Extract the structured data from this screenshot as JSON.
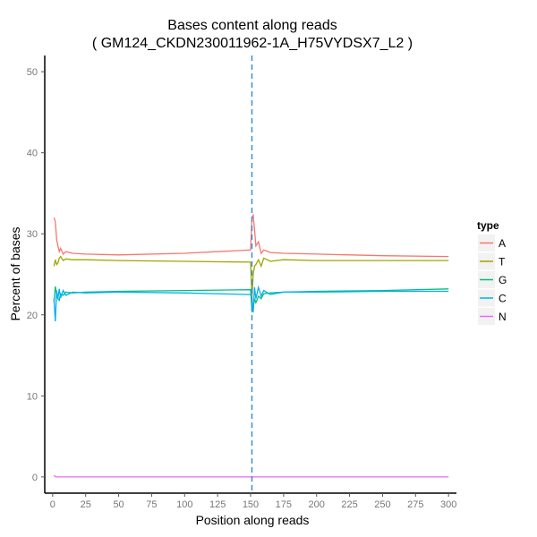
{
  "chart_data": {
    "type": "line",
    "title": "Bases content along reads",
    "subtitle": "( GM124_CKDN230011962-1A_H75VYDSX7_L2 )",
    "xlabel": "Position along reads",
    "ylabel": "Percent of bases",
    "xlim": [
      -6,
      306
    ],
    "ylim": [
      -2,
      52
    ],
    "xticks": [
      0,
      25,
      50,
      75,
      100,
      125,
      150,
      175,
      200,
      225,
      250,
      275,
      300
    ],
    "yticks": [
      0,
      10,
      20,
      30,
      40,
      50
    ],
    "vline": {
      "x": 151,
      "style": "dashed",
      "color": "#3a8fd6"
    },
    "legend": {
      "title": "type",
      "position": "right"
    },
    "grid": false,
    "x": [
      1,
      2,
      3,
      4,
      5,
      6,
      8,
      10,
      15,
      25,
      50,
      100,
      150,
      151,
      152,
      153,
      154,
      156,
      158,
      160,
      165,
      175,
      200,
      250,
      300
    ],
    "series": [
      {
        "name": "A",
        "color": "#f8766d",
        "values": [
          32.0,
          31.5,
          29.3,
          28.5,
          27.8,
          28.2,
          27.5,
          27.8,
          27.6,
          27.5,
          27.4,
          27.6,
          28.0,
          32.0,
          32.3,
          30.5,
          28.5,
          29.0,
          27.6,
          28.0,
          27.7,
          27.6,
          27.5,
          27.3,
          27.2
        ]
      },
      {
        "name": "T",
        "color": "#a3a500",
        "values": [
          26.0,
          26.8,
          26.2,
          26.4,
          27.0,
          27.2,
          26.7,
          26.9,
          26.8,
          26.8,
          26.7,
          26.6,
          26.5,
          22.0,
          25.0,
          26.0,
          26.2,
          26.8,
          26.0,
          27.0,
          26.6,
          26.8,
          26.7,
          26.7,
          26.7
        ]
      },
      {
        "name": "G",
        "color": "#00bf7d",
        "values": [
          21.5,
          23.5,
          22.5,
          22.0,
          21.8,
          22.6,
          22.4,
          22.8,
          22.7,
          22.8,
          22.9,
          23.0,
          23.1,
          20.5,
          20.8,
          22.0,
          21.5,
          22.3,
          22.0,
          22.6,
          22.7,
          22.8,
          22.9,
          23.0,
          23.2
        ]
      },
      {
        "name": "C",
        "color": "#00b0f6",
        "values": [
          22.0,
          19.2,
          23.0,
          22.0,
          23.2,
          22.1,
          23.0,
          22.4,
          22.8,
          22.7,
          22.8,
          22.7,
          22.5,
          22.0,
          20.3,
          23.4,
          22.0,
          23.4,
          22.3,
          23.0,
          22.5,
          22.8,
          22.8,
          22.9,
          22.9
        ]
      },
      {
        "name": "N",
        "color": "#e76bf3",
        "values": [
          0.2,
          0.05,
          0,
          0,
          0,
          0,
          0,
          0,
          0,
          0,
          0,
          0,
          0,
          0,
          0,
          0,
          0,
          0,
          0,
          0,
          0,
          0,
          0,
          0,
          0
        ]
      }
    ]
  }
}
